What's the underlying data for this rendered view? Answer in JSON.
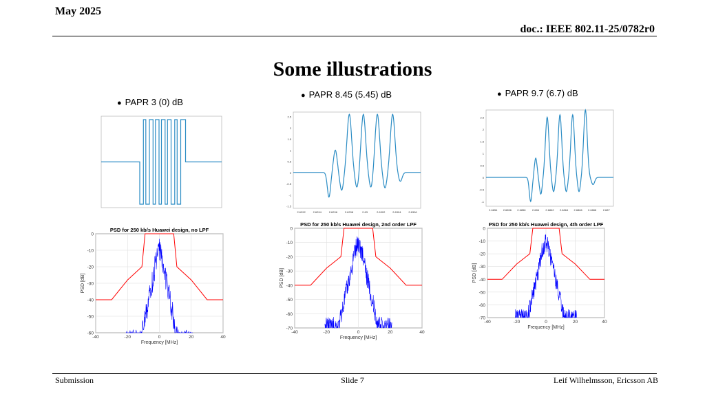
{
  "header": {
    "date": "May 2025",
    "doc": "doc.: IEEE 802.11-25/0782r0"
  },
  "slide_title": "Some illustrations",
  "columns": [
    {
      "caption": "PAPR 3 (0)  dB",
      "psd_title": "PSD for 250 kb/s Huawei design, no LPF"
    },
    {
      "caption": "PAPR 8.45 (5.45)  dB",
      "psd_title": "PSD for 250 kb/s Huawei design, 2nd order LPF"
    },
    {
      "caption": "PAPR 9.7 (6.7)  dB",
      "psd_title": "PSD for 250 kb/s Huawei design, 4th order LPF"
    }
  ],
  "footer": {
    "left": "Submission",
    "center": "Slide 7",
    "right": "Leif Wilhelmsson, Ericsson AB"
  },
  "chart_data": [
    {
      "type": "line",
      "ylim": [
        -1,
        1
      ],
      "y_ticks": [],
      "x_ticks": [],
      "color": "#2b8cc4",
      "segments": [
        [
          0,
          0
        ],
        [
          0.32,
          0
        ],
        [
          0.32,
          -1
        ],
        [
          0.35,
          -1
        ],
        [
          0.35,
          1
        ],
        [
          0.37,
          1
        ],
        [
          0.37,
          -1
        ],
        [
          0.4,
          -1
        ],
        [
          0.4,
          1
        ],
        [
          0.43,
          1
        ],
        [
          0.43,
          -1
        ],
        [
          0.45,
          -1
        ],
        [
          0.45,
          1
        ],
        [
          0.48,
          1
        ],
        [
          0.48,
          -1
        ],
        [
          0.5,
          -1
        ],
        [
          0.5,
          1
        ],
        [
          0.53,
          1
        ],
        [
          0.53,
          -1
        ],
        [
          0.55,
          -1
        ],
        [
          0.55,
          1
        ],
        [
          0.58,
          1
        ],
        [
          0.58,
          -1
        ],
        [
          0.61,
          -1
        ],
        [
          0.61,
          1
        ],
        [
          0.63,
          1
        ],
        [
          0.63,
          -1
        ],
        [
          0.66,
          -1
        ],
        [
          0.66,
          1
        ],
        [
          0.7,
          1
        ],
        [
          0.7,
          0
        ],
        [
          1,
          0
        ]
      ]
    },
    {
      "type": "line",
      "ylim": [
        -1.6,
        2.7
      ],
      "y_ticks": [
        "2.5",
        "2",
        "1.5",
        "1",
        "0.5",
        "0",
        "-0.5",
        "-1",
        "-1.5"
      ],
      "x_ticks": [
        "2.6292",
        "2.6294",
        "2.6296",
        "2.6298",
        "2.63",
        "2.6302",
        "2.6304",
        "2.6306"
      ],
      "color": "#2b8cc4"
    },
    {
      "type": "line",
      "ylim": [
        -1.2,
        2.8
      ],
      "y_ticks": [
        "2.5",
        "2",
        "1.5",
        "1",
        "0.5",
        "0",
        "-0.5",
        "-1"
      ],
      "x_ticks": [
        "2.6854",
        "2.6856",
        "2.6858",
        "2.686",
        "2.6862",
        "2.6864",
        "2.6866",
        "2.6868",
        "2.687"
      ],
      "color": "#2b8cc4"
    },
    {
      "type": "line",
      "title": "PSD for 250 kb/s Huawei design, no LPF",
      "xlabel": "Frequency [MHz]",
      "ylabel": "PSD [dB]",
      "xlim": [
        -40,
        40
      ],
      "ylim": [
        -60,
        0
      ],
      "x_ticks": [
        "-40",
        "-20",
        "0",
        "20",
        "40"
      ],
      "y_ticks": [
        "0",
        "-10",
        "-20",
        "-30",
        "-40",
        "-50",
        "-60"
      ],
      "mask": {
        "x": [
          -40,
          -30,
          -20,
          -11,
          -9,
          9,
          11,
          20,
          30,
          40
        ],
        "y": [
          -40,
          -40,
          -28,
          -20,
          0,
          0,
          -20,
          -28,
          -40,
          -40
        ],
        "color": "#ff0000"
      },
      "series_color": "#0000ff",
      "noise_floor": -60
    },
    {
      "type": "line",
      "title": "PSD for 250 kb/s Huawei design, 2nd order LPF",
      "xlabel": "Frequency [MHz]",
      "ylabel": "PSD [dB]",
      "xlim": [
        -40,
        40
      ],
      "ylim": [
        -70,
        0
      ],
      "x_ticks": [
        "-40",
        "-20",
        "0",
        "20",
        "40"
      ],
      "y_ticks": [
        "0",
        "-10",
        "-20",
        "-30",
        "-40",
        "-50",
        "-60",
        "-70"
      ],
      "mask": {
        "x": [
          -40,
          -30,
          -20,
          -11,
          -9,
          9,
          11,
          20,
          30,
          40
        ],
        "y": [
          -40,
          -40,
          -28,
          -20,
          0,
          0,
          -20,
          -28,
          -40,
          -40
        ],
        "color": "#ff0000"
      },
      "series_color": "#0000ff",
      "noise_floor": -64
    },
    {
      "type": "line",
      "title": "PSD for 250 kb/s Huawei design, 4th order LPF",
      "xlabel": "Frequency [MHz]",
      "ylabel": "PSD [dB]",
      "xlim": [
        -40,
        40
      ],
      "ylim": [
        -70,
        0
      ],
      "x_ticks": [
        "-40",
        "-20",
        "0",
        "20",
        "40"
      ],
      "y_ticks": [
        "0",
        "-10",
        "-20",
        "-30",
        "-40",
        "-50",
        "-60",
        "-70"
      ],
      "mask": {
        "x": [
          -40,
          -30,
          -20,
          -11,
          -9,
          9,
          11,
          20,
          30,
          40
        ],
        "y": [
          -40,
          -40,
          -28,
          -20,
          0,
          0,
          -20,
          -28,
          -40,
          -40
        ],
        "color": "#ff0000"
      },
      "series_color": "#0000ff",
      "noise_floor": -65
    }
  ]
}
